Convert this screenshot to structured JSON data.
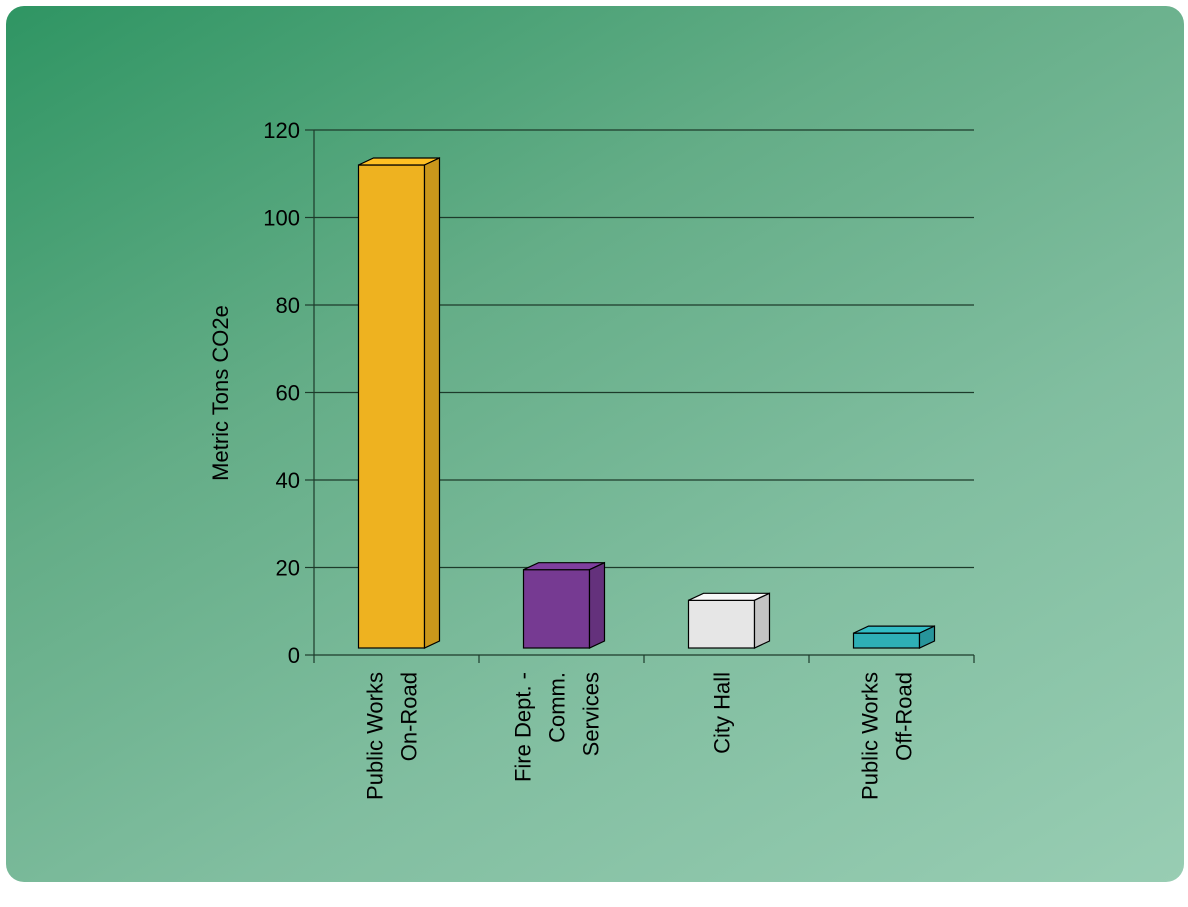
{
  "chart_data": {
    "type": "bar",
    "ylabel": "Metric Tons CO2e",
    "ylim": [
      0,
      120
    ],
    "yticks": [
      0,
      20,
      40,
      60,
      80,
      100,
      120
    ],
    "grid": true,
    "categories": [
      [
        "Public Works",
        "On-Road"
      ],
      [
        "Fire Dept. -",
        "Comm.",
        "Services"
      ],
      [
        "City Hall"
      ],
      [
        "Public Works",
        "Off-Road"
      ]
    ],
    "values": [
      112,
      19.5,
      12.5,
      5
    ],
    "colors": [
      "#eeb220",
      "#763a92",
      "#e6e6e6",
      "#2eafb6"
    ]
  }
}
